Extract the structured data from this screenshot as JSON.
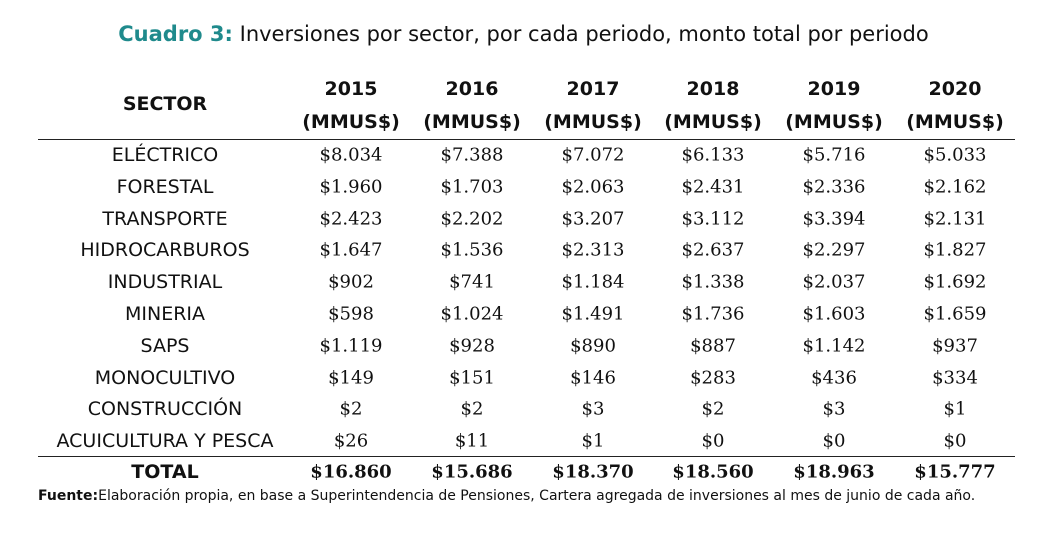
{
  "caption": {
    "label": "Cuadro 3:",
    "text": "Inversiones por sector, por cada periodo, monto total por periodo"
  },
  "table": {
    "header": {
      "sector": "SECTOR",
      "columns": [
        {
          "year": "2015",
          "unit": "(MMUS$)"
        },
        {
          "year": "2016",
          "unit": "(MMUS$)"
        },
        {
          "year": "2017",
          "unit": "(MMUS$)"
        },
        {
          "year": "2018",
          "unit": "(MMUS$)"
        },
        {
          "year": "2019",
          "unit": "(MMUS$)"
        },
        {
          "year": "2020",
          "unit": "(MMUS$)"
        }
      ]
    },
    "rows": [
      [
        "ELÉCTRICO",
        "$8.034",
        "$7.388",
        "$7.072",
        "$6.133",
        "$5.716",
        "$5.033"
      ],
      [
        "FORESTAL",
        "$1.960",
        "$1.703",
        "$2.063",
        "$2.431",
        "$2.336",
        "$2.162"
      ],
      [
        "TRANSPORTE",
        "$2.423",
        "$2.202",
        "$3.207",
        "$3.112",
        "$3.394",
        "$2.131"
      ],
      [
        "HIDROCARBUROS",
        "$1.647",
        "$1.536",
        "$2.313",
        "$2.637",
        "$2.297",
        "$1.827"
      ],
      [
        "INDUSTRIAL",
        "$902",
        "$741",
        "$1.184",
        "$1.338",
        "$2.037",
        "$1.692"
      ],
      [
        "MINERIA",
        "$598",
        "$1.024",
        "$1.491",
        "$1.736",
        "$1.603",
        "$1.659"
      ],
      [
        "SAPS",
        "$1.119",
        "$928",
        "$890",
        "$887",
        "$1.142",
        "$937"
      ],
      [
        "MONOCULTIVO",
        "$149",
        "$151",
        "$146",
        "$283",
        "$436",
        "$334"
      ],
      [
        "CONSTRUCCIÓN",
        "$2",
        "$2",
        "$3",
        "$2",
        "$3",
        "$1"
      ],
      [
        "ACUICULTURA Y PESCA",
        "$26",
        "$11",
        "$1",
        "$0",
        "$0",
        "$0"
      ]
    ],
    "total": [
      "TOTAL",
      "$16.860",
      "$15.686",
      "$18.370",
      "$18.560",
      "$18.963",
      "$15.777"
    ]
  },
  "source": {
    "label": "Fuente:",
    "text": "Elaboración propia, en base a Superintendencia de Pensiones, Cartera agregada de inversiones al mes de junio de cada año."
  }
}
